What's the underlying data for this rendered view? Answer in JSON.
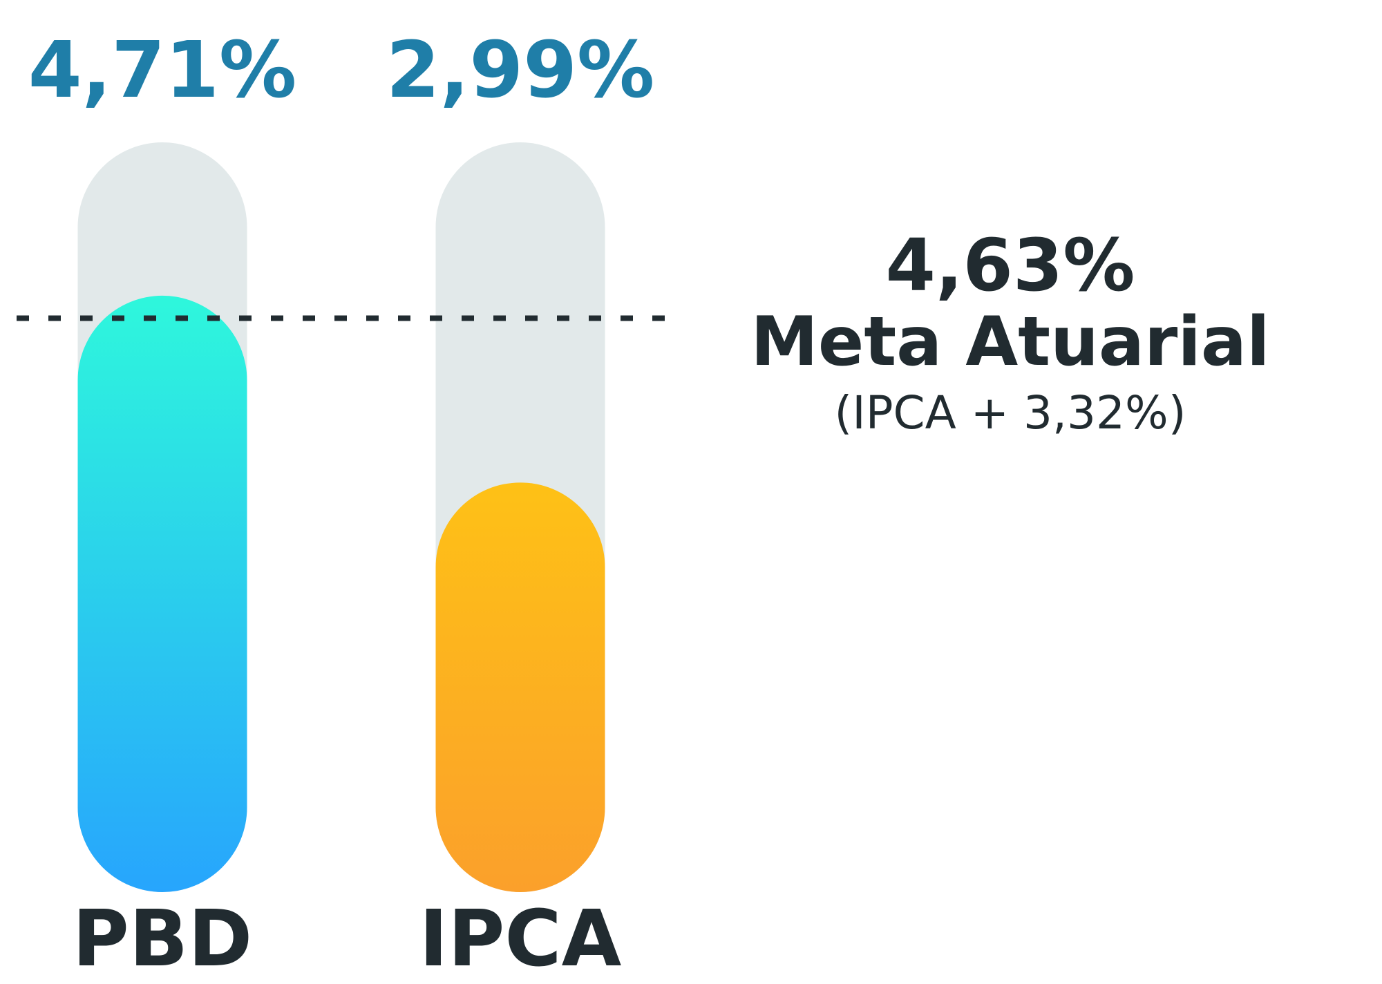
{
  "chart_data": {
    "type": "bar",
    "categories": [
      "PBD",
      "IPCA"
    ],
    "values": [
      4.71,
      2.99
    ],
    "value_labels": [
      "4,71%",
      "2,99%"
    ],
    "ylim": [
      0,
      6.9
    ],
    "grid": false,
    "reference_line": {
      "value": 4.63,
      "value_label": "4,63%",
      "label": "Meta Atuarial",
      "sublabel": "(IPCA + 3,32%)"
    }
  },
  "colors": {
    "track": "#e2e9ea",
    "value_text": "#1f7ea8",
    "label_text": "#212b30",
    "bar_gradients": [
      [
        "#2ef7dc",
        "#27a5fd"
      ],
      [
        "#fec116",
        "#fba02b"
      ]
    ]
  }
}
